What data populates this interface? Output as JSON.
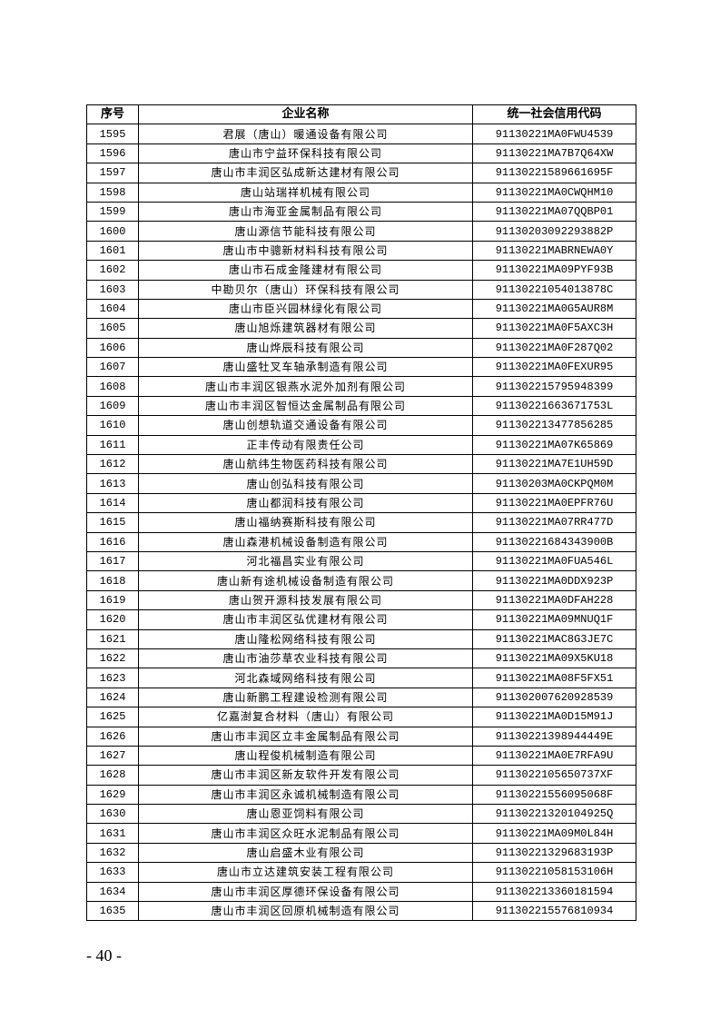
{
  "table": {
    "headers": [
      "序号",
      "企业名称",
      "统一社会信用代码"
    ],
    "rows": [
      [
        "1595",
        "君展（唐山）暖通设备有限公司",
        "91130221MA0FWU4539"
      ],
      [
        "1596",
        "唐山市宁益环保科技有限公司",
        "91130221MA7B7Q64XW"
      ],
      [
        "1597",
        "唐山市丰润区弘成新达建材有限公司",
        "91130221589661695F"
      ],
      [
        "1598",
        "唐山站瑞祥机械有限公司",
        "91130221MA0CWQHM10"
      ],
      [
        "1599",
        "唐山市海亚金属制品有限公司",
        "91130221MA07QQBP01"
      ],
      [
        "1600",
        "唐山源信节能科技有限公司",
        "91130203092293882P"
      ],
      [
        "1601",
        "唐山市中骢新材料科技有限公司",
        "91130221MABRNEWA0Y"
      ],
      [
        "1602",
        "唐山市石成金隆建材有限公司",
        "91130221MA09PYF93B"
      ],
      [
        "1603",
        "中勘贝尔（唐山）环保科技有限公司",
        "91130221054013878C"
      ],
      [
        "1604",
        "唐山市臣兴园林绿化有限公司",
        "91130221MA0G5AUR8M"
      ],
      [
        "1605",
        "唐山旭烁建筑器材有限公司",
        "91130221MA0F5AXC3H"
      ],
      [
        "1606",
        "唐山烨辰科技有限公司",
        "91130221MA0F287Q02"
      ],
      [
        "1607",
        "唐山盛牡叉车轴承制造有限公司",
        "91130221MA0FEXUR95"
      ],
      [
        "1608",
        "唐山市丰润区银燕水泥外加剂有限公司",
        "911302215795948399"
      ],
      [
        "1609",
        "唐山市丰润区智恒达金属制品有限公司",
        "91130221663671753L"
      ],
      [
        "1610",
        "唐山创想轨道交通设备有限公司",
        "911302213477856285"
      ],
      [
        "1611",
        "正丰传动有限责任公司",
        "91130221MA07K65869"
      ],
      [
        "1612",
        "唐山航纬生物医药科技有限公司",
        "91130221MA7E1UH59D"
      ],
      [
        "1613",
        "唐山创弘科技有限公司",
        "91130203MA0CKPQM0M"
      ],
      [
        "1614",
        "唐山都润科技有限公司",
        "91130221MA0EPFR76U"
      ],
      [
        "1615",
        "唐山福纳赛斯科技有限公司",
        "91130221MA07RR477D"
      ],
      [
        "1616",
        "唐山森港机械设备制造有限公司",
        "91130221684343900B"
      ],
      [
        "1617",
        "河北福昌实业有限公司",
        "91130221MA0FUA546L"
      ],
      [
        "1618",
        "唐山新有途机械设备制造有限公司",
        "91130221MA0DDX923P"
      ],
      [
        "1619",
        "唐山贺开源科技发展有限公司",
        "91130221MA0DFAH228"
      ],
      [
        "1620",
        "唐山市丰润区弘优建材有限公司",
        "91130221MA09MNUQ1F"
      ],
      [
        "1621",
        "唐山隆松网络科技有限公司",
        "91130221MAC8G3JE7C"
      ],
      [
        "1622",
        "唐山市油莎草农业科技有限公司",
        "91130221MA09X5KU18"
      ],
      [
        "1623",
        "河北森域网络科技有限公司",
        "91130221MA08F5FX51"
      ],
      [
        "1624",
        "唐山新鹏工程建设检测有限公司",
        "911302007620928539"
      ],
      [
        "1625",
        "亿嘉澍复合材料（唐山）有限公司",
        "91130221MA0D15M91J"
      ],
      [
        "1626",
        "唐山市丰润区立丰金属制品有限公司",
        "91130221398944449E"
      ],
      [
        "1627",
        "唐山程俊机械制造有限公司",
        "91130221MA0E7RFA9U"
      ],
      [
        "1628",
        "唐山市丰润区新友软件开发有限公司",
        "9113022105650737XF"
      ],
      [
        "1629",
        "唐山市丰润区永诚机械制造有限公司",
        "91130221556095068F"
      ],
      [
        "1630",
        "唐山恩亚饲料有限公司",
        "91130221320104925Q"
      ],
      [
        "1631",
        "唐山市丰润区众旺水泥制品有限公司",
        "91130221MA09M0L84H"
      ],
      [
        "1632",
        "唐山启盛木业有限公司",
        "91130221329683193P"
      ],
      [
        "1633",
        "唐山市立达建筑安装工程有限公司",
        "91130221058153106H"
      ],
      [
        "1634",
        "唐山市丰润区厚德环保设备有限公司",
        "911302213360181594"
      ],
      [
        "1635",
        "唐山市丰润区回原机械制造有限公司",
        "911302215576810934"
      ]
    ]
  },
  "footer": {
    "page_number": "- 40 -"
  }
}
